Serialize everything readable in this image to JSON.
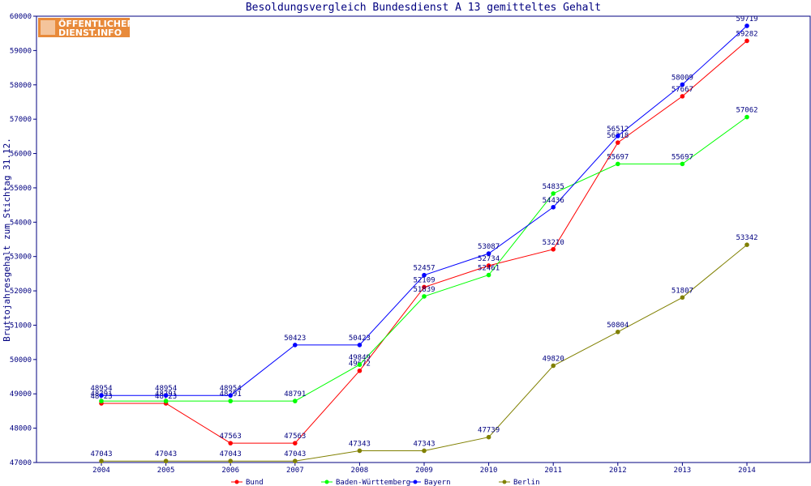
{
  "chart_data": {
    "type": "line",
    "title": "Besoldungsvergleich Bundesdienst A 13 gemitteltes Gehalt",
    "ylabel": "Bruttojahresgehalt zum Stichtag 31.12.",
    "xlabel": "",
    "ylim": [
      47000,
      60000
    ],
    "yticks": [
      47000,
      48000,
      49000,
      50000,
      51000,
      52000,
      53000,
      54000,
      55000,
      56000,
      57000,
      58000,
      59000,
      60000
    ],
    "categories": [
      "2004",
      "2005",
      "2006",
      "2007",
      "2008",
      "2009",
      "2010",
      "2011",
      "2012",
      "2013",
      "2014"
    ],
    "grid": false,
    "legend_position": "bottom",
    "series": [
      {
        "name": "Bund",
        "color": "#ff0000",
        "values": [
          48723,
          48723,
          47563,
          47563,
          49672,
          52109,
          52734,
          53210,
          56318,
          57667,
          59282
        ]
      },
      {
        "name": "Baden-Württemberg",
        "color": "#00ff00",
        "values": [
          48791,
          48791,
          48791,
          48791,
          49849,
          51839,
          52461,
          54835,
          55697,
          55697,
          57062
        ]
      },
      {
        "name": "Bayern",
        "color": "#0000ff",
        "values": [
          48954,
          48954,
          48954,
          50423,
          50423,
          52457,
          53087,
          54436,
          56512,
          58009,
          59719
        ]
      },
      {
        "name": "Berlin",
        "color": "#808000",
        "values": [
          47043,
          47043,
          47043,
          47043,
          47343,
          47343,
          47739,
          49820,
          50804,
          51807,
          53342
        ]
      }
    ]
  },
  "logo": {
    "line1": "ÖFFENTLICHER",
    "line2": "DIENST.INFO",
    "bg_color": "#e88a3a"
  }
}
